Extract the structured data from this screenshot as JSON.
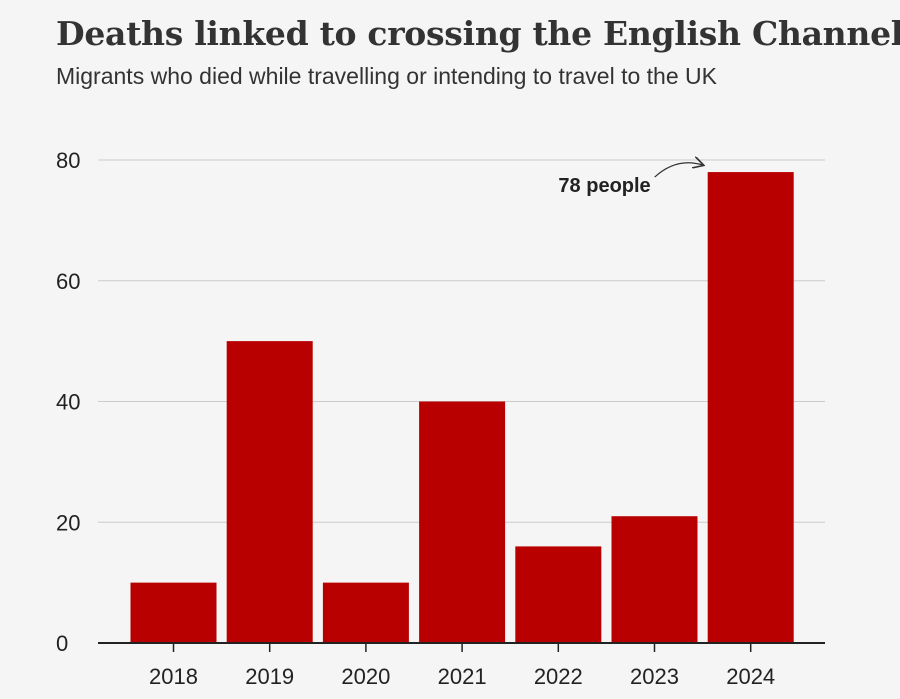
{
  "header": {
    "title": "Deaths linked to crossing the English Channel",
    "subtitle": "Migrants who died while travelling or intending to travel to the UK"
  },
  "chart_data": {
    "type": "bar",
    "categories": [
      "2018",
      "2019",
      "2020",
      "2021",
      "2022",
      "2023",
      "2024"
    ],
    "values": [
      10,
      50,
      10,
      40,
      16,
      21,
      78
    ],
    "title": "Deaths linked to crossing the English Channel",
    "subtitle": "Migrants who died while travelling or intending to travel to the UK",
    "xlabel": "",
    "ylabel": "",
    "ylim": [
      0,
      80
    ],
    "yticks": [
      0,
      20,
      40,
      60,
      80
    ],
    "grid": true,
    "bar_color": "#b80000",
    "annotation": {
      "text": "78 people",
      "category": "2024"
    }
  }
}
